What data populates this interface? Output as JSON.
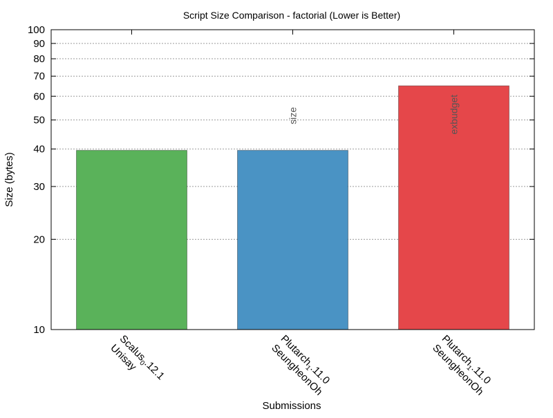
{
  "chart_data": {
    "type": "bar",
    "title": "Script Size Comparison - factorial (Lower is Better)",
    "xlabel": "Submissions",
    "ylabel": "Size (bytes)",
    "yscale": "log",
    "ylim": [
      10,
      100
    ],
    "yticks": [
      10,
      20,
      30,
      40,
      50,
      60,
      70,
      80,
      90,
      100
    ],
    "grid": true,
    "bars": [
      {
        "value": 39.6,
        "color": "#5ab25a",
        "label_line1_main": "Scalus",
        "label_line1_sub": "0",
        "label_line1_rest": ".12.1",
        "label_line2": "Unisay"
      },
      {
        "value": 39.6,
        "color": "#4a93c4",
        "label_line1_main": "Plutarch",
        "label_line1_sub": "1",
        "label_line1_rest": ".11.0",
        "label_line2": "SeungheonOh"
      },
      {
        "value": 65,
        "color": "#e5474a",
        "label_line1_main": "Plutarch",
        "label_line1_sub": "1",
        "label_line1_rest": ".11.0",
        "label_line2": "SeungheonOh"
      }
    ],
    "annotations": [
      {
        "text": "size",
        "bar_index": 1
      },
      {
        "text": "exbudget",
        "bar_index": 2
      }
    ]
  }
}
